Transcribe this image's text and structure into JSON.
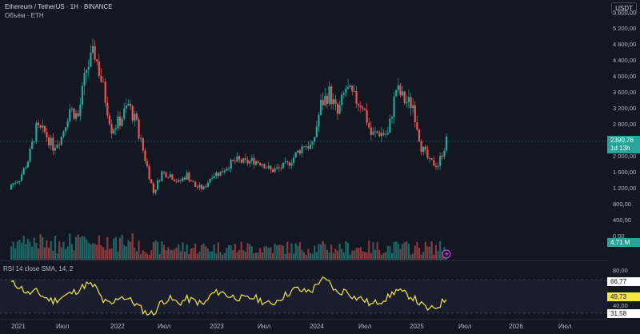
{
  "header": {
    "title": "Ethereum / TetherUS · 1Н · BINANCE",
    "volume_label": "Объём · ETH"
  },
  "currency_button": "USDT",
  "price_axis": [
    "5 600,00",
    "5 200,00",
    "4 800,00",
    "4 400,00",
    "4 000,00",
    "3 600,00",
    "3 200,00",
    "2 800,00",
    "2 000,00",
    "1 600,00",
    "1 200,00",
    "800,00",
    "400,00",
    "0,00"
  ],
  "price_tag": {
    "price": "2390,76",
    "countdown": "1d 13h"
  },
  "volume_tag": "4,71 M",
  "rsi": {
    "legend": "RSI 14 close SMA, 14, 2",
    "axis": [
      "80,00",
      "40,00"
    ],
    "tags": {
      "value": "66,77",
      "sma": "49,73",
      "lower": "31,58"
    }
  },
  "time_axis": [
    "2021",
    "Июл",
    "2022",
    "Июл",
    "2023",
    "Июл",
    "2024",
    "Июл",
    "2025",
    "Июл",
    "2026",
    "Июл"
  ],
  "colors": {
    "up": "#26a69a",
    "down": "#ef5350",
    "rsi_line": "#f5e642",
    "background": "#131722"
  },
  "chart_data": {
    "type": "candlestick",
    "symbol": "ETHUSDT",
    "x": [
      "2021-01",
      "2021-02",
      "2021-03",
      "2021-04",
      "2021-05",
      "2021-06",
      "2021-07",
      "2021-08",
      "2021-09",
      "2021-10",
      "2021-11",
      "2021-12",
      "2022-01",
      "2022-02",
      "2022-03",
      "2022-04",
      "2022-05",
      "2022-06",
      "2022-07",
      "2022-08",
      "2022-09",
      "2022-10",
      "2022-11",
      "2022-12",
      "2023-01",
      "2023-02",
      "2023-03",
      "2023-04",
      "2023-05",
      "2023-06",
      "2023-07",
      "2023-08",
      "2023-09",
      "2023-10",
      "2023-11",
      "2023-12",
      "2024-01",
      "2024-02",
      "2024-03",
      "2024-04",
      "2024-05",
      "2024-06",
      "2024-07",
      "2024-08",
      "2024-09",
      "2024-10",
      "2024-11",
      "2024-12",
      "2025-01",
      "2025-02",
      "2025-03",
      "2025-04",
      "2025-05"
    ],
    "close": [
      1300,
      1450,
      1900,
      2700,
      2600,
      2250,
      2500,
      3200,
      3000,
      4200,
      4600,
      3700,
      2700,
      2900,
      3300,
      2800,
      1950,
      1100,
      1600,
      1550,
      1350,
      1550,
      1250,
      1200,
      1550,
      1600,
      1800,
      1900,
      1850,
      1900,
      1850,
      1650,
      1700,
      1800,
      2050,
      2300,
      2250,
      3300,
      3600,
      3050,
      3700,
      3450,
      3300,
      2550,
      2600,
      2550,
      3700,
      3400,
      3300,
      2250,
      1850,
      1800,
      2390
    ],
    "rsi": [
      70,
      65,
      55,
      58,
      50,
      45,
      50,
      55,
      60,
      68,
      65,
      45,
      40,
      52,
      48,
      40,
      30,
      28,
      45,
      48,
      42,
      48,
      45,
      40,
      55,
      58,
      52,
      50,
      48,
      50,
      45,
      40,
      48,
      55,
      62,
      58,
      60,
      75,
      70,
      55,
      60,
      50,
      48,
      40,
      45,
      50,
      60,
      55,
      50,
      40,
      33,
      38,
      49
    ],
    "price_range": [
      0,
      5800
    ],
    "rsi_range": [
      20,
      100
    ],
    "last_price": 2390.76
  }
}
